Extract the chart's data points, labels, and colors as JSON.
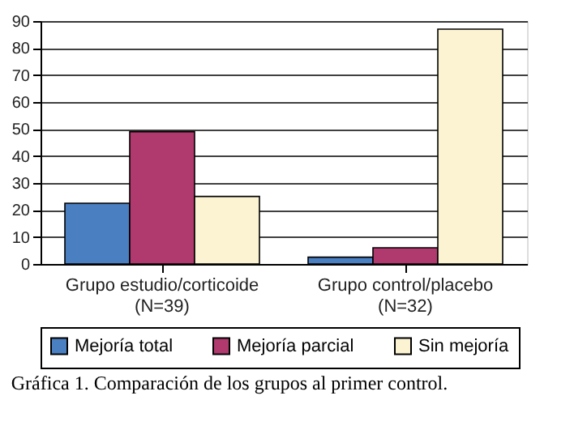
{
  "chart_data": {
    "type": "bar",
    "categories": [
      "Grupo estudio/corticoide\n(N=39)",
      "Grupo control/placebo\n(N=32)"
    ],
    "series": [
      {
        "name": "Mejoría total",
        "color": "#4a7fc1",
        "values": [
          22.5,
          2.5
        ]
      },
      {
        "name": "Mejoría parcial",
        "color": "#b03a6e",
        "values": [
          49,
          6
        ]
      },
      {
        "name": "Sin mejoría",
        "color": "#fbf3d2",
        "values": [
          25,
          87
        ]
      }
    ],
    "ylim": [
      0,
      90
    ],
    "yticks": [
      0,
      10,
      20,
      30,
      40,
      50,
      60,
      70,
      80,
      90
    ],
    "grid": "y",
    "legend": "bottom",
    "annotations": [
      "Gráfica 1. Comparación de los grupos al primer control."
    ]
  }
}
